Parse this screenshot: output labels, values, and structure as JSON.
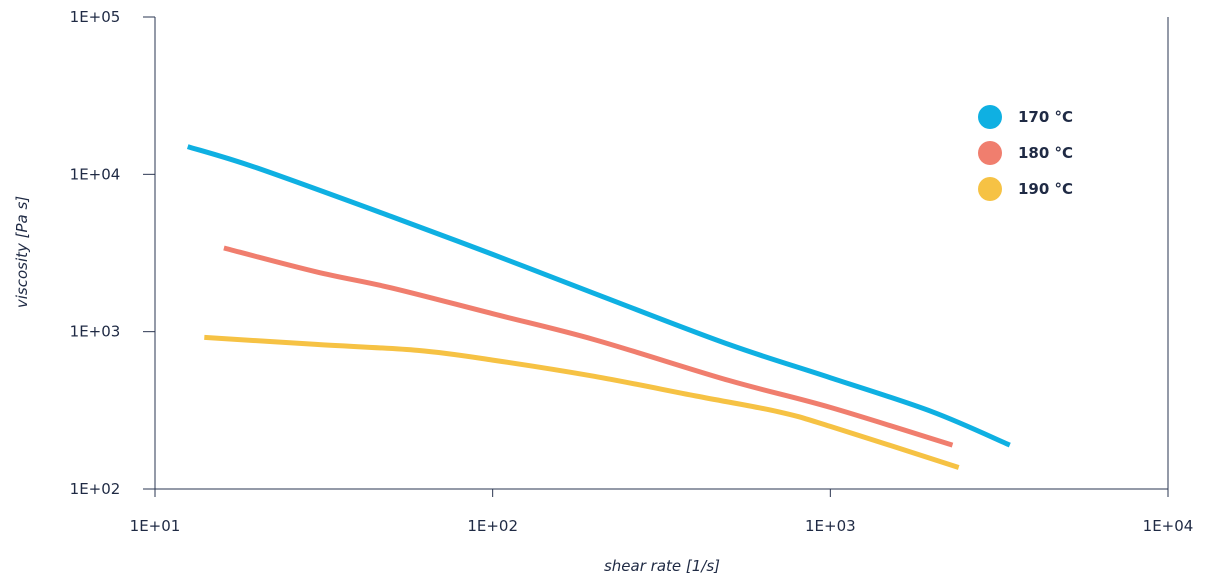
{
  "chart_data": {
    "type": "line",
    "xlabel": "shear rate [1/s]",
    "ylabel": "viscosity [Pa s]",
    "x_scale": "log",
    "y_scale": "log",
    "xlim": [
      10,
      10000
    ],
    "ylim": [
      100,
      100000
    ],
    "x_ticks": [
      "1E+01",
      "1E+02",
      "1E+03",
      "1E+04"
    ],
    "y_ticks": [
      "1E+02",
      "1E+03",
      "1E+04",
      "1E+05"
    ],
    "grid": false,
    "legend_position": "top-right",
    "series": [
      {
        "name": "170 °C",
        "color": "#0fb0e2",
        "x": [
          12.5,
          20,
          50,
          100,
          200,
          500,
          1000,
          2000,
          3400
        ],
        "y": [
          15000,
          11000,
          5400,
          3100,
          1750,
          830,
          510,
          310,
          190
        ]
      },
      {
        "name": "180 °C",
        "color": "#f07e6e",
        "x": [
          16,
          30,
          50,
          100,
          200,
          500,
          1000,
          2300
        ],
        "y": [
          3400,
          2400,
          1900,
          1300,
          890,
          490,
          330,
          190
        ]
      },
      {
        "name": "190 °C",
        "color": "#f6c244",
        "x": [
          14,
          30,
          60,
          100,
          200,
          400,
          700,
          1000,
          2400
        ],
        "y": [
          920,
          830,
          760,
          660,
          520,
          390,
          310,
          250,
          137
        ]
      }
    ]
  }
}
